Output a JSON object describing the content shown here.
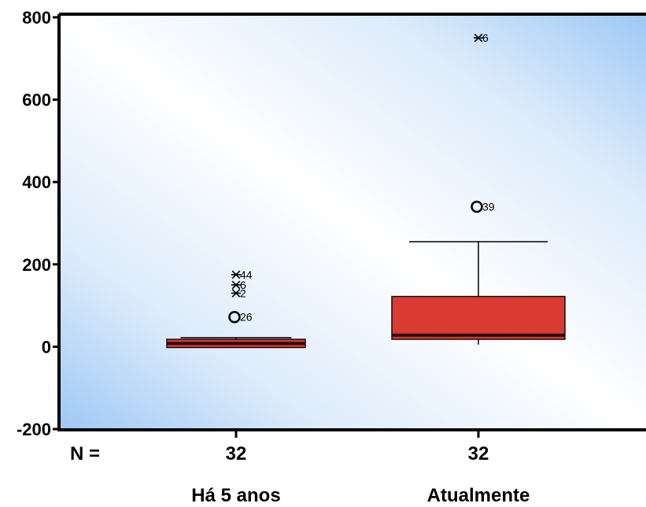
{
  "chart_data": {
    "type": "boxplot",
    "title": "",
    "xlabel": "",
    "ylabel": "",
    "ylim": [
      -200,
      800
    ],
    "yticks": [
      -200,
      0,
      200,
      400,
      600,
      800
    ],
    "n_label": "N =",
    "grid": false,
    "colors": {
      "box": "#d93a32",
      "median": "#2a0a08",
      "background_edge": "#9ec8f5",
      "background_center": "#ffffff"
    },
    "categories": [
      "Há 5 anos",
      "Atualmente"
    ],
    "series": [
      {
        "category": "Há 5 anos",
        "n": "32",
        "whisker_low": -2,
        "q1": -2,
        "median": 8,
        "q3": 18,
        "whisker_high": 22,
        "outliers": [
          {
            "value": 72,
            "label": "26",
            "marker": "circle"
          },
          {
            "value": 130,
            "label": "2",
            "marker": "star"
          },
          {
            "value": 150,
            "label": "6",
            "marker": "star"
          },
          {
            "value": 175,
            "label": "44",
            "marker": "star"
          }
        ]
      },
      {
        "category": "Atualmente",
        "n": "32",
        "whisker_low": 5,
        "q1": 18,
        "median": 28,
        "q3": 122,
        "whisker_high": 255,
        "outliers": [
          {
            "value": 340,
            "label": "39",
            "marker": "circle"
          },
          {
            "value": 750,
            "label": "6",
            "marker": "star"
          }
        ]
      }
    ]
  }
}
